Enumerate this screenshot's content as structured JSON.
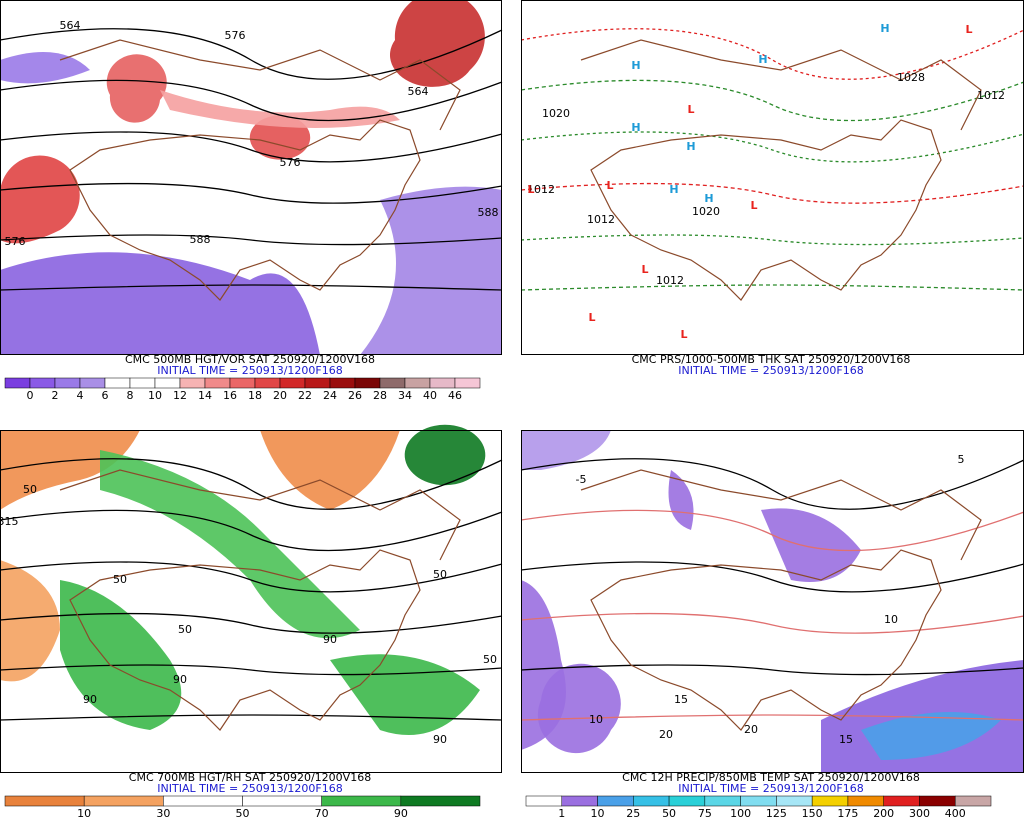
{
  "panels": [
    {
      "title": "CMC 500MB HGT/VOR SAT 250920/1200V168",
      "initial_time": "INITIAL TIME = 250913/1200F168",
      "map_labels": [
        "564",
        "576",
        "588",
        "576",
        "576",
        "588",
        "564"
      ],
      "colorbar": {
        "labels": [
          0,
          2,
          4,
          6,
          8,
          10,
          12,
          14,
          16,
          18,
          20,
          22,
          24,
          26,
          28,
          34,
          40,
          46
        ],
        "colors": [
          "#7a3ee0",
          "#8a5ae6",
          "#9a7ae8",
          "#a98fe6",
          "#ffffff",
          "#ffffff",
          "#ffffff",
          "#f6b3b3",
          "#f08a8a",
          "#ea6666",
          "#e14646",
          "#d22828",
          "#b81818",
          "#9a0d0d",
          "#7a0606",
          "#8e6a6a",
          "#c8a2a2",
          "#e6b9c8",
          "#f5c6d6"
        ]
      }
    },
    {
      "title": "CMC PRS/1000-500MB THK SAT 250920/1200V168",
      "initial_time": "INITIAL TIME = 250913/1200F168",
      "map_labels": [
        "1020",
        "1012",
        "1012",
        "1020",
        "1028",
        "1012",
        "1012"
      ],
      "pressure_centers": [
        {
          "label": "H",
          "color": "#1e9bd7"
        },
        {
          "label": "H",
          "color": "#1e9bd7"
        },
        {
          "label": "H",
          "color": "#1e9bd7"
        },
        {
          "label": "H",
          "color": "#1e9bd7"
        },
        {
          "label": "H",
          "color": "#1e9bd7"
        },
        {
          "label": "H",
          "color": "#1e9bd7"
        },
        {
          "label": "H",
          "color": "#1e9bd7"
        },
        {
          "label": "L",
          "color": "#e8231d"
        },
        {
          "label": "L",
          "color": "#e8231d"
        },
        {
          "label": "L",
          "color": "#e8231d"
        },
        {
          "label": "L",
          "color": "#e8231d"
        },
        {
          "label": "L",
          "color": "#e8231d"
        },
        {
          "label": "L",
          "color": "#e8231d"
        },
        {
          "label": "L",
          "color": "#e8231d"
        },
        {
          "label": "L",
          "color": "#e8231d"
        }
      ]
    },
    {
      "title": "CMC 700MB HGT/RH SAT 250920/1200V168",
      "initial_time": "INITIAL TIME = 250913/1200F168",
      "map_labels": [
        "50",
        "90",
        "50",
        "90",
        "315",
        "50",
        "90",
        "50",
        "90",
        "50"
      ],
      "colorbar": {
        "labels": [
          10,
          30,
          50,
          70,
          90
        ],
        "colors": [
          "#e8823c",
          "#f4a261",
          "#ffffff",
          "#ffffff",
          "#3cb84a",
          "#0e7a22"
        ]
      }
    },
    {
      "title": "CMC 12H PRECIP/850MB TEMP SAT 250920/1200V168",
      "initial_time": "INITIAL TIME = 250913/1200F168",
      "map_labels": [
        "-5",
        "10",
        "15",
        "20",
        "20",
        "10",
        "15",
        "5"
      ],
      "colorbar": {
        "labels": [
          1,
          10,
          25,
          50,
          75,
          100,
          125,
          150,
          175,
          200,
          300,
          400
        ],
        "colors": [
          "#ffffff",
          "#9a6fe0",
          "#4aa0e8",
          "#36c0e6",
          "#2ad0d8",
          "#5ad6e6",
          "#80ddf0",
          "#a6e6f6",
          "#f4d000",
          "#f08a00",
          "#e02020",
          "#8a0000",
          "#c8a6a6"
        ]
      }
    }
  ]
}
